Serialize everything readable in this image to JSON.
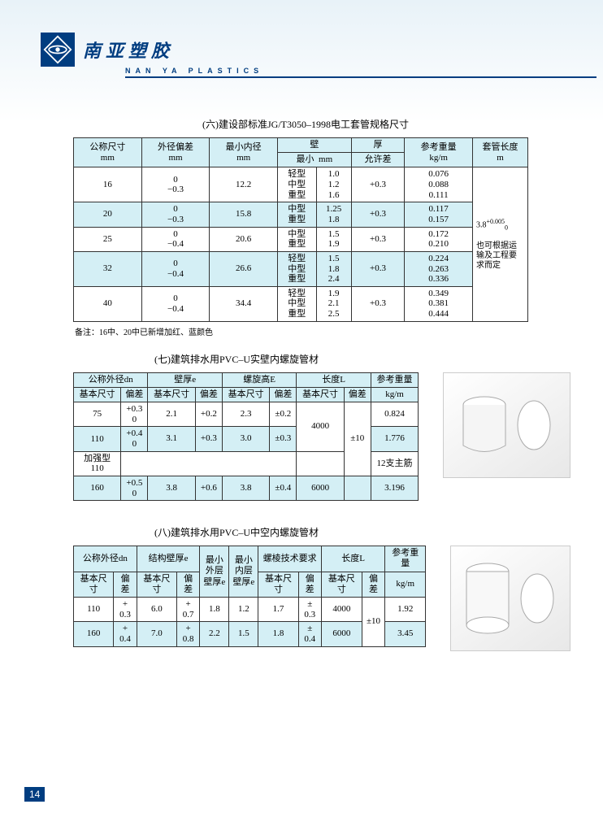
{
  "brand": {
    "cn": "南亚塑胶",
    "en": "NAN YA PLASTICS"
  },
  "page_num": "14",
  "sec6": {
    "title": "(六)建设部标准JG/T3050–1998电工套管规格尺寸",
    "headers": {
      "h1": "公称尺寸",
      "h1u": "mm",
      "h2": "外径偏差",
      "h2u": "mm",
      "h3": "最小内径",
      "h3u": "mm",
      "h4": "壁",
      "h5": "厚",
      "h4a": "最小",
      "h4u": "mm",
      "h4b": "允许差",
      "h6": "参考重量",
      "h6u": "kg/m",
      "h7": "套管长度",
      "h7u": "m"
    },
    "rows": [
      {
        "nom": "16",
        "tol_top": "0",
        "tol_bot": "−0.3",
        "id": "12.2",
        "types": "轻型\n中型\n重型",
        "min": "1.0\n1.2\n1.6",
        "allow": "+0.3",
        "wt": "0.076\n0.088\n0.111"
      },
      {
        "nom": "20",
        "tol_top": "0",
        "tol_bot": "−0.3",
        "id": "15.8",
        "types": "中型\n重型",
        "min": "1.25\n1.8",
        "allow": "+0.3",
        "wt": "0.117\n0.157"
      },
      {
        "nom": "25",
        "tol_top": "0",
        "tol_bot": "−0.4",
        "id": "20.6",
        "types": "中型\n重型",
        "min": "1.5\n1.9",
        "allow": "+0.3",
        "wt": "0.172\n0.210"
      },
      {
        "nom": "32",
        "tol_top": "0",
        "tol_bot": "−0.4",
        "id": "26.6",
        "types": "轻型\n中型\n重型",
        "min": "1.5\n1.8\n2.4",
        "allow": "+0.3",
        "wt": "0.224\n0.263\n0.336"
      },
      {
        "nom": "40",
        "tol_top": "0",
        "tol_bot": "−0.4",
        "id": "34.4",
        "types": "轻型\n中型\n重型",
        "min": "1.9\n2.1\n2.5",
        "allow": "+0.3",
        "wt": "0.349\n0.381\n0.444"
      }
    ],
    "len_note": "3.8",
    "len_sup": "+0.005",
    "len_sub": "0",
    "len_extra": "也可根据运输及工程要求而定",
    "footnote": "备注：16中、20中已新增加红、蓝颜色"
  },
  "sec7": {
    "title": "(七)建筑排水用PVC–U实壁内螺旋管材",
    "h": {
      "dn": "公称外径dn",
      "e": "壁厚e",
      "E": "螺旋高E",
      "L": "长度L",
      "wt": "参考重量",
      "base": "基本尺寸",
      "tol": "偏差",
      "kgm": "kg/m"
    },
    "rows": [
      {
        "dn": "75",
        "dntol": "+0.3\n0",
        "e": "2.1",
        "etol": "+0.2",
        "E": "2.3",
        "Etol": "±0.2",
        "wt": "0.824"
      },
      {
        "dn": "110",
        "dntol": "+0.4\n0",
        "e": "3.1",
        "etol": "+0.3",
        "E": "3.0",
        "Etol": "±0.3",
        "wt": "1.776"
      },
      {
        "dn": "加强型\n110",
        "dntol": "",
        "e": "",
        "etol": "",
        "E": "",
        "Etol": "",
        "wt": "12支主筋"
      },
      {
        "dn": "160",
        "dntol": "+0.5\n0",
        "e": "3.8",
        "etol": "+0.6",
        "E": "3.8",
        "Etol": "±0.4",
        "wt": "3.196"
      }
    ],
    "L": "4000",
    "Ltol": "±10",
    "L2": "6000"
  },
  "sec8": {
    "title": "(八)建筑排水用PVC–U中空内螺旋管材",
    "h": {
      "dn": "公称外径dn",
      "e": "结构壁厚e",
      "e0": "最小外层壁厚e",
      "e1": "最小内层壁厚e",
      "tech": "螺棱技术要求",
      "L": "长度L",
      "wt": "参考重量",
      "base": "基本尺寸",
      "tol": "偏差",
      "kgm": "kg/m"
    },
    "rows": [
      {
        "dn": "110",
        "dntol": "+\n0.3",
        "e": "6.0",
        "etol": "+\n0.7",
        "e0": "1.8",
        "e1": "1.2",
        "t1": "1.7",
        "ttol": "±\n0.3",
        "L": "4000",
        "wt": "1.92"
      },
      {
        "dn": "160",
        "dntol": "+\n0.4",
        "e": "7.0",
        "etol": "+\n0.8",
        "e0": "2.2",
        "e1": "1.5",
        "t1": "1.8",
        "ttol": "±\n0.4",
        "L": "6000",
        "wt": "3.45"
      }
    ],
    "Ltol": "±10"
  }
}
